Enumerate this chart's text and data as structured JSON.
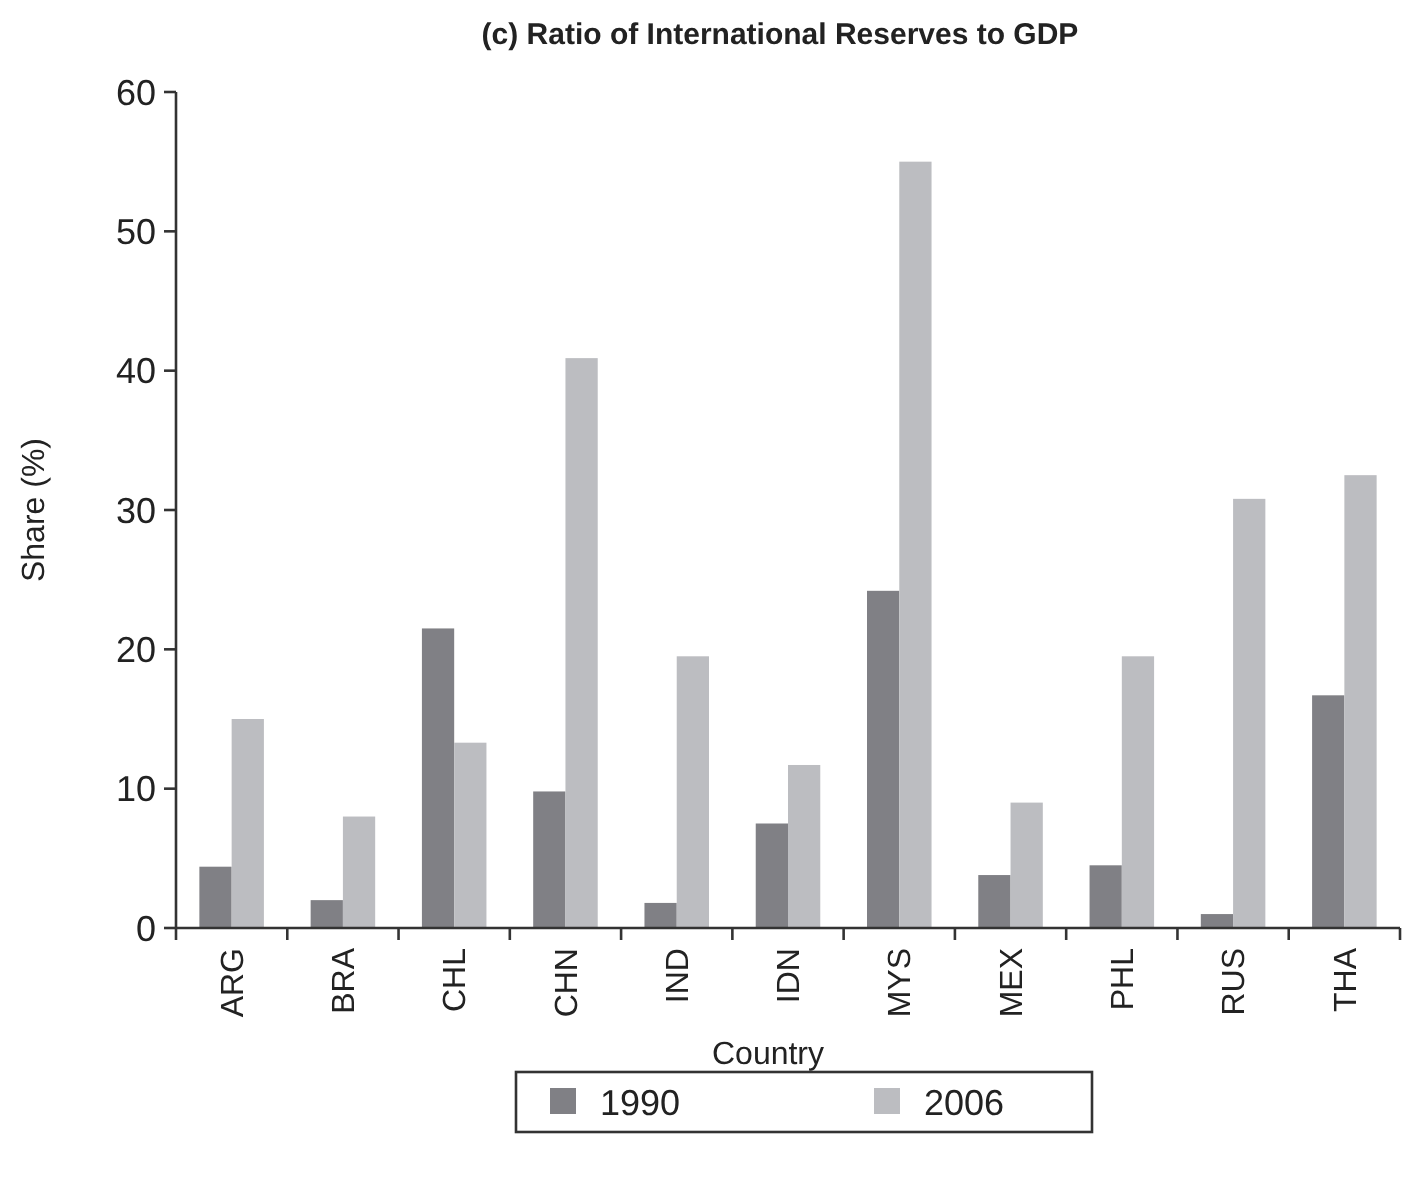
{
  "chart_data": {
    "type": "bar",
    "title": "(c) Ratio of International Reserves to GDP",
    "xlabel": "Country",
    "ylabel": "Share (%)",
    "categories": [
      "ARG",
      "BRA",
      "CHL",
      "CHN",
      "IND",
      "IDN",
      "MYS",
      "MEX",
      "PHL",
      "RUS",
      "THA"
    ],
    "series": [
      {
        "name": "1990",
        "color": "#808085",
        "values": [
          4.4,
          2.0,
          21.5,
          9.8,
          1.8,
          7.5,
          24.2,
          3.8,
          4.5,
          1.0,
          16.7
        ]
      },
      {
        "name": "2006",
        "color": "#bcbdc1",
        "values": [
          15.0,
          8.0,
          13.3,
          40.9,
          19.5,
          11.7,
          55.0,
          9.0,
          19.5,
          30.8,
          32.5
        ]
      }
    ],
    "ylim": [
      0,
      60
    ],
    "yticks": [
      0,
      10,
      20,
      30,
      40,
      50,
      60
    ],
    "grid": false,
    "legend": "bottom"
  }
}
